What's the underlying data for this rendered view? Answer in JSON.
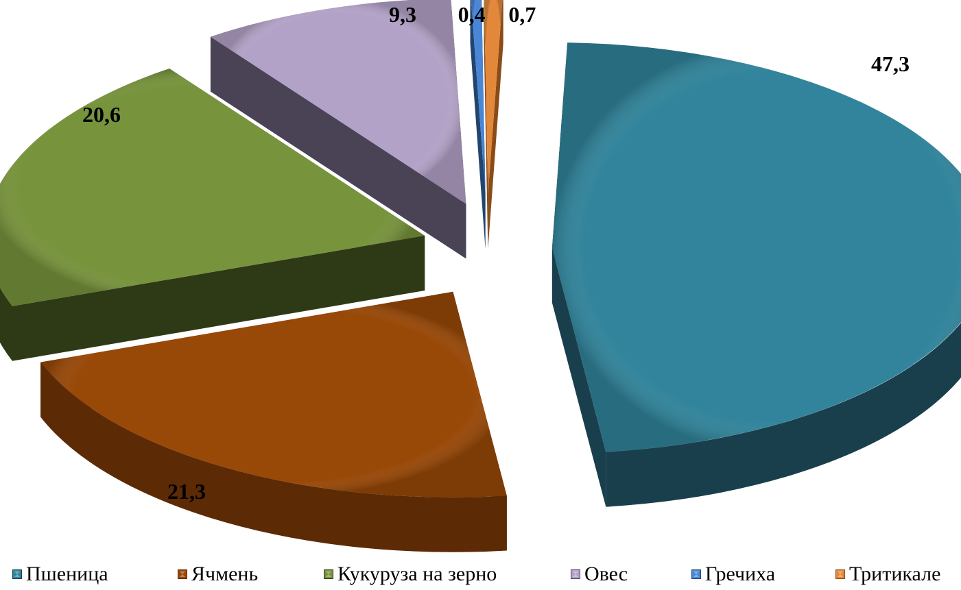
{
  "chart_data": {
    "type": "pie",
    "style": "3d-exploded",
    "title": "",
    "categories": [
      "Пшеница",
      "Ячмень",
      "Кукуруза на зерно",
      "Овес",
      "Гречиха",
      "Тритикале"
    ],
    "values": [
      47.3,
      21.3,
      20.6,
      9.3,
      0.4,
      0.7
    ],
    "data_labels": [
      "47,3",
      "21,3",
      "20,6",
      "9,3",
      "0,4",
      "0,7"
    ],
    "colors": [
      "#31849B",
      "#984807",
      "#77933C",
      "#B3A2C7",
      "#4A86D6",
      "#E3883A"
    ],
    "side_colors": [
      "#1A3F4C",
      "#5C2A05",
      "#2E3A16",
      "#4A4356",
      "#22456E",
      "#8A4B17"
    ],
    "legend_position": "bottom"
  },
  "legend": {
    "items": [
      {
        "label": "Пшеница",
        "color": "#31849B"
      },
      {
        "label": "Ячмень",
        "color": "#984807"
      },
      {
        "label": "Кукуруза на зерно",
        "color": "#77933C"
      },
      {
        "label": "Овес",
        "color": "#B3A2C7"
      },
      {
        "label": "Гречиха",
        "color": "#4A86D6"
      },
      {
        "label": "Тритикале",
        "color": "#E3883A"
      }
    ]
  }
}
